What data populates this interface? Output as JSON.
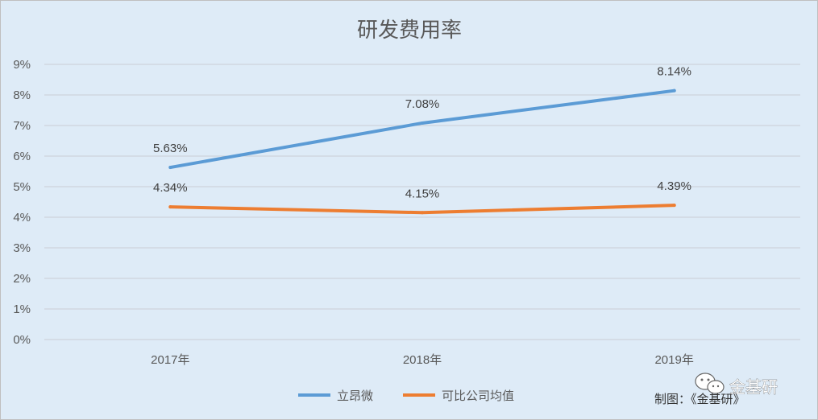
{
  "chart_data": {
    "type": "line",
    "title": "研发费用率",
    "categories": [
      "2017年",
      "2018年",
      "2019年"
    ],
    "y_ticks": [
      "0%",
      "1%",
      "2%",
      "3%",
      "4%",
      "5%",
      "6%",
      "7%",
      "8%",
      "9%"
    ],
    "ylim": [
      0,
      9
    ],
    "grid": true,
    "legend_position": "bottom",
    "series": [
      {
        "name": "立昂微",
        "values": [
          5.63,
          7.08,
          8.14
        ],
        "labels": [
          "5.63%",
          "7.08%",
          "8.14%"
        ],
        "color": "#5B9BD5"
      },
      {
        "name": "可比公司均值",
        "values": [
          4.34,
          4.15,
          4.39
        ],
        "labels": [
          "4.34%",
          "4.15%",
          "4.39%"
        ],
        "color": "#ED7D31"
      }
    ]
  },
  "credit": "制图：《金基研》",
  "watermark": "金基研",
  "watermark_icon": "wechat-icon",
  "colors": {
    "plot_bg": "#DEEBF7",
    "grid": "#C9CED6",
    "frame": "#BFBFBF"
  }
}
